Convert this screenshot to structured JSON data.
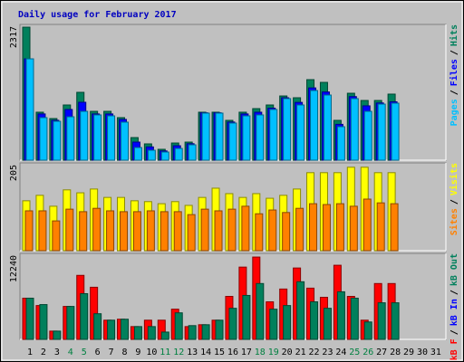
{
  "chart_data": {
    "type": "bar",
    "title": "Daily usage for February 2017",
    "categories": [
      "1",
      "2",
      "3",
      "4",
      "5",
      "6",
      "7",
      "8",
      "9",
      "10",
      "11",
      "12",
      "13",
      "14",
      "15",
      "16",
      "17",
      "18",
      "19",
      "20",
      "21",
      "22",
      "23",
      "24",
      "25",
      "26",
      "27",
      "28",
      "29",
      "30",
      "31"
    ],
    "category_color": "#000000",
    "highlight_color": "#008040",
    "highlighted_categories": [
      "4",
      "5",
      "11",
      "12",
      "18",
      "19",
      "25",
      "26"
    ],
    "legend_separator": "/",
    "panels": [
      {
        "ylim": [
          0,
          2317
        ],
        "yticks": [
          2317
        ],
        "legend_reverse": true,
        "series": [
          {
            "name": "Hits",
            "color": "#00805c",
            "values": [
              2301,
              830,
              720,
              955,
              1174,
              845,
              845,
              736,
              391,
              282,
              188,
              297,
              313,
              830,
              830,
              689,
              830,
              892,
              955,
              1111,
              1080,
              1393,
              1346,
              689,
              1158,
              1033,
              1033,
              1143,
              null,
              null,
              null
            ]
          },
          {
            "name": "Files",
            "color": "#0000ff",
            "values": [
              1753,
              800,
              690,
              877,
              1002,
              800,
              800,
              705,
              313,
              230,
              160,
              250,
              285,
              820,
              820,
              660,
              800,
              830,
              900,
              1080,
              1000,
              1250,
              1180,
              620,
              1100,
              940,
              990,
              1010,
              null,
              null,
              null
            ]
          },
          {
            "name": "Pages",
            "color": "#00c0ff",
            "values": [
              1753,
              736,
              673,
              751,
              845,
              783,
              767,
              658,
              219,
              172,
              141,
              203,
              266,
              814,
              814,
              642,
              767,
              783,
              877,
              1065,
              955,
              1205,
              1127,
              579,
              1065,
              845,
              970,
              986,
              null,
              null,
              null
            ]
          }
        ]
      },
      {
        "ylim": [
          0,
          205
        ],
        "yticks": [
          205
        ],
        "legend_reverse": true,
        "series": [
          {
            "name": "Visits",
            "color": "#ffff00",
            "values": [
              119,
              132,
              106,
              145,
              138,
              147,
              127,
              127,
              119,
              117,
              112,
              117,
              108,
              127,
              149,
              136,
              127,
              136,
              125,
              132,
              147,
              186,
              186,
              186,
              199,
              199,
              186,
              186,
              null,
              null,
              null
            ]
          },
          {
            "name": "Sites",
            "color": "#ff8000",
            "values": [
              95,
              95,
              71,
              99,
              93,
              101,
              95,
              93,
              93,
              95,
              93,
              93,
              86,
              99,
              95,
              99,
              106,
              88,
              97,
              91,
              101,
              112,
              110,
              112,
              106,
              123,
              114,
              112,
              null,
              null,
              null
            ]
          }
        ]
      },
      {
        "ylim": [
          0,
          12240
        ],
        "yticks": [
          12240
        ],
        "legend_reverse": false,
        "series": [
          {
            "name": "kB F",
            "color": "#ff0000",
            "values": [
              5990,
              4920,
              1200,
              4790,
              9310,
              7580,
              2790,
              2930,
              1860,
              2790,
              2790,
              4390,
              1860,
              2130,
              2790,
              6250,
              10510,
              11970,
              5460,
              7320,
              10380,
              7450,
              6120,
              10780,
              6250,
              2790,
              8120,
              8120,
              null,
              null,
              null
            ]
          },
          {
            "name": "kB In",
            "color": "#0000ff",
            "values": [
              0,
              0,
              0,
              0,
              0,
              0,
              0,
              0,
              0,
              0,
              0,
              0,
              0,
              0,
              0,
              0,
              0,
              0,
              0,
              0,
              0,
              0,
              0,
              0,
              0,
              0,
              0,
              0,
              null,
              null,
              null
            ]
          },
          {
            "name": "kB Out",
            "color": "#00805c",
            "values": [
              5990,
              5060,
              1200,
              4790,
              6650,
              3730,
              2790,
              2930,
              1860,
              1860,
              1060,
              3860,
              2000,
              2130,
              2790,
              4520,
              6390,
              8120,
              4390,
              4920,
              8380,
              5460,
              4520,
              6920,
              5990,
              2530,
              5320,
              5320,
              null,
              null,
              null
            ]
          }
        ]
      }
    ]
  }
}
